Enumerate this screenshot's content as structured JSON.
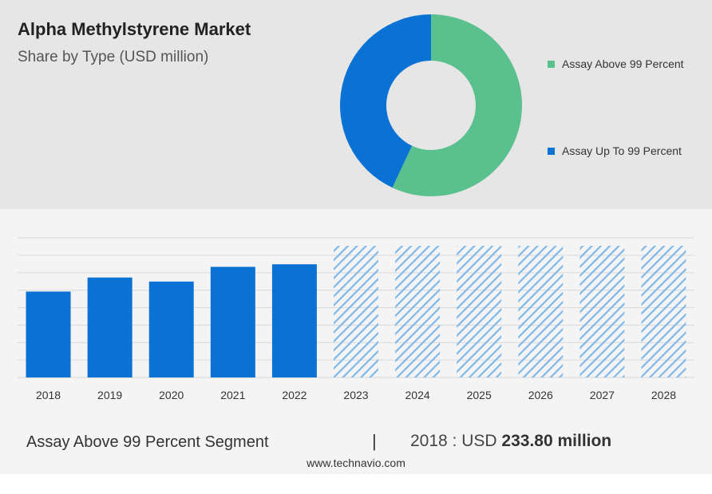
{
  "header": {
    "title": "Alpha Methylstyrene Market",
    "subtitle": "Share by Type (USD million)"
  },
  "colors": {
    "assay_above_99": "#5ac08e",
    "assay_up_to_99": "#0a72d4",
    "top_background": "#e6e6e6",
    "bottom_background": "#f4f4f4",
    "forecast_hatch": "#7fb8ea",
    "gridline": "#d9d9d9"
  },
  "footer": {
    "segment_label": "Assay Above 99 Percent Segment",
    "separator": "|",
    "value_prefix": "2018 : USD",
    "value_bold": "233.80 million",
    "source": "www.technavio.com"
  },
  "chart_data": [
    {
      "type": "pie",
      "title": "Share by Type (USD million)",
      "donut": true,
      "categories": [
        "Assay Above 99 Percent",
        "Assay Up To 99 Percent"
      ],
      "values": [
        57,
        43
      ],
      "legend_position": "right"
    },
    {
      "type": "bar",
      "categories": [
        "2018",
        "2019",
        "2020",
        "2021",
        "2022",
        "2023",
        "2024",
        "2025",
        "2026",
        "2027",
        "2028"
      ],
      "series": [
        {
          "values": [
            233.8,
            272,
            261,
            301,
            308,
            null,
            null,
            null,
            null,
            null,
            null
          ]
        }
      ],
      "forecast_years": [
        "2023",
        "2024",
        "2025",
        "2026",
        "2027",
        "2028"
      ],
      "forecast_style": "hatched",
      "ylim": [
        0,
        380
      ],
      "y_axis_labels": false,
      "grid": true
    }
  ]
}
